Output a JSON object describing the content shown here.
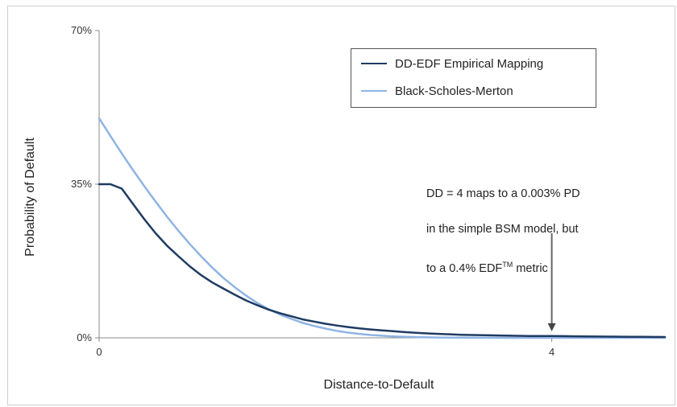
{
  "chart_data": {
    "type": "line",
    "title": "",
    "xlabel": "Distance-to-Default",
    "ylabel": "Probability of Default",
    "xlim": [
      0,
      5
    ],
    "ylim": [
      0,
      70
    ],
    "x_ticks": [
      {
        "value": 0,
        "label": "0"
      },
      {
        "value": 4,
        "label": "4"
      }
    ],
    "y_ticks": [
      {
        "value": 0,
        "label": "0%"
      },
      {
        "value": 35,
        "label": "35%"
      },
      {
        "value": 70,
        "label": "70%"
      }
    ],
    "grid": false,
    "legend_position": "top-right",
    "series": [
      {
        "name": "DD-EDF Empirical Mapping",
        "color": "#1f3b63",
        "x": [
          0,
          0.1,
          0.2,
          0.3,
          0.4,
          0.5,
          0.6,
          0.7,
          0.8,
          0.9,
          1.0,
          1.1,
          1.2,
          1.3,
          1.4,
          1.5,
          1.6,
          1.7,
          1.8,
          1.9,
          2.0,
          2.1,
          2.2,
          2.3,
          2.4,
          2.5,
          2.6,
          2.7,
          2.8,
          2.9,
          3.0,
          3.1,
          3.2,
          3.3,
          3.4,
          3.5,
          3.6,
          3.7,
          3.8,
          3.9,
          4.0,
          4.1,
          4.2,
          4.3,
          4.4,
          4.5,
          4.6,
          4.7,
          4.8,
          4.9,
          5.0
        ],
        "y": [
          35,
          35,
          34,
          30.5,
          27,
          23.8,
          21,
          18.6,
          16.3,
          14.3,
          12.6,
          11.2,
          9.8,
          8.5,
          7.4,
          6.4,
          5.6,
          4.9,
          4.2,
          3.7,
          3.2,
          2.8,
          2.45,
          2.15,
          1.9,
          1.7,
          1.5,
          1.3,
          1.15,
          1.0,
          0.9,
          0.8,
          0.7,
          0.65,
          0.6,
          0.55,
          0.5,
          0.45,
          0.42,
          0.41,
          0.4,
          0.38,
          0.35,
          0.32,
          0.3,
          0.28,
          0.26,
          0.24,
          0.22,
          0.2,
          0.19
        ]
      },
      {
        "name": "Black-Scholes-Merton",
        "color": "#8fb4e3",
        "x": [
          0,
          0.1,
          0.2,
          0.3,
          0.4,
          0.5,
          0.6,
          0.7,
          0.8,
          0.9,
          1.0,
          1.1,
          1.2,
          1.3,
          1.4,
          1.5,
          1.6,
          1.7,
          1.8,
          1.9,
          2.0,
          2.1,
          2.2,
          2.3,
          2.4,
          2.5,
          2.6,
          2.7,
          2.8,
          2.9,
          3.0,
          3.2,
          3.4,
          3.6,
          3.8,
          4.0,
          4.2,
          4.4,
          4.6,
          4.8,
          5.0
        ],
        "y": [
          50,
          46,
          42,
          38.2,
          34.5,
          31,
          27.6,
          24.4,
          21.4,
          18.6,
          16,
          13.6,
          11.5,
          9.6,
          7.9,
          6.5,
          5.3,
          4.3,
          3.4,
          2.7,
          2.1,
          1.6,
          1.2,
          0.9,
          0.65,
          0.47,
          0.33,
          0.23,
          0.16,
          0.11,
          0.07,
          0.03,
          0.015,
          0.008,
          0.004,
          0.003,
          0.002,
          0.001,
          0.0005,
          0.0003,
          0.0002
        ]
      }
    ],
    "annotation": {
      "line1": "DD = 4 maps to a 0.003% PD",
      "line2": "in the simple BSM model, but",
      "line3_pre": "to a 0.4% EDF",
      "line3_sup": "TM",
      "line3_post": " metric",
      "arrow_target": {
        "x": 4,
        "y": 0.4
      }
    }
  }
}
